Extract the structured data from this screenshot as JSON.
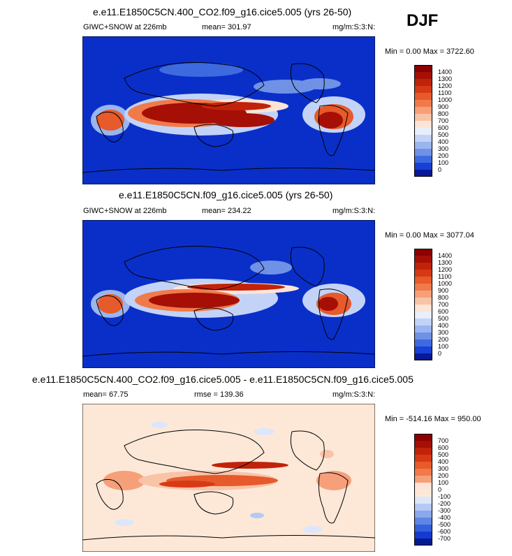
{
  "season": "DJF",
  "panels": [
    {
      "title": "e.e11.E1850C5CN.400_CO2.f09_g16.cice5.005 (yrs 26-50)",
      "field": "GIWC+SNOW at 226mb",
      "stat": "mean= 301.97",
      "units": "mg/m:S:3:N:",
      "minmax": "Min =   0.00 Max = 3722.60",
      "levels": [
        "1400",
        "1300",
        "1200",
        "1100",
        "1000",
        "900",
        "800",
        "700",
        "600",
        "500",
        "400",
        "300",
        "200",
        "100",
        "0"
      ],
      "colors": [
        "#8b0000",
        "#a50f05",
        "#c1220a",
        "#d63a15",
        "#e65a2b",
        "#f07a4a",
        "#f6a07a",
        "#f9c3a8",
        "#fde4d6",
        "#e8eefc",
        "#c3d3f7",
        "#9ab5ef",
        "#6f92e6",
        "#3e6ae0",
        "#1840d6",
        "#081898"
      ]
    },
    {
      "title": "e.e11.E1850C5CN.f09_g16.cice5.005 (yrs 26-50)",
      "field": "GIWC+SNOW at 226mb",
      "stat": "mean= 234.22",
      "units": "mg/m:S:3:N:",
      "minmax": "Min =   0.00 Max = 3077.04",
      "levels": [
        "1400",
        "1300",
        "1200",
        "1100",
        "1000",
        "900",
        "800",
        "700",
        "600",
        "500",
        "400",
        "300",
        "200",
        "100",
        "0"
      ],
      "colors": [
        "#8b0000",
        "#a50f05",
        "#c1220a",
        "#d63a15",
        "#e65a2b",
        "#f07a4a",
        "#f6a07a",
        "#f9c3a8",
        "#fde4d6",
        "#e8eefc",
        "#c3d3f7",
        "#9ab5ef",
        "#6f92e6",
        "#3e6ae0",
        "#1840d6",
        "#081898"
      ]
    },
    {
      "title": "e.e11.E1850C5CN.400_CO2.f09_g16.cice5.005 - e.e11.E1850C5CN.f09_g16.cice5.005",
      "field": "",
      "stat": "mean=   67.75",
      "rmse": "rmse = 139.36",
      "units": "mg/m:S:3:N:",
      "minmax": "Min = -514.16 Max = 950.00",
      "levels": [
        "700",
        "600",
        "500",
        "400",
        "300",
        "200",
        "100",
        "0",
        "-100",
        "-200",
        "-300",
        "-400",
        "-500",
        "-600",
        "-700"
      ],
      "colors": [
        "#8b0000",
        "#a50f05",
        "#c1220a",
        "#d63a15",
        "#e65a2b",
        "#f07a4a",
        "#f6a07a",
        "#fde4d6",
        "#fde8d8",
        "#dde7fb",
        "#b6c9f5",
        "#8aa8ec",
        "#5f86e3",
        "#3560dd",
        "#153ad2",
        "#061a8f"
      ]
    }
  ]
}
